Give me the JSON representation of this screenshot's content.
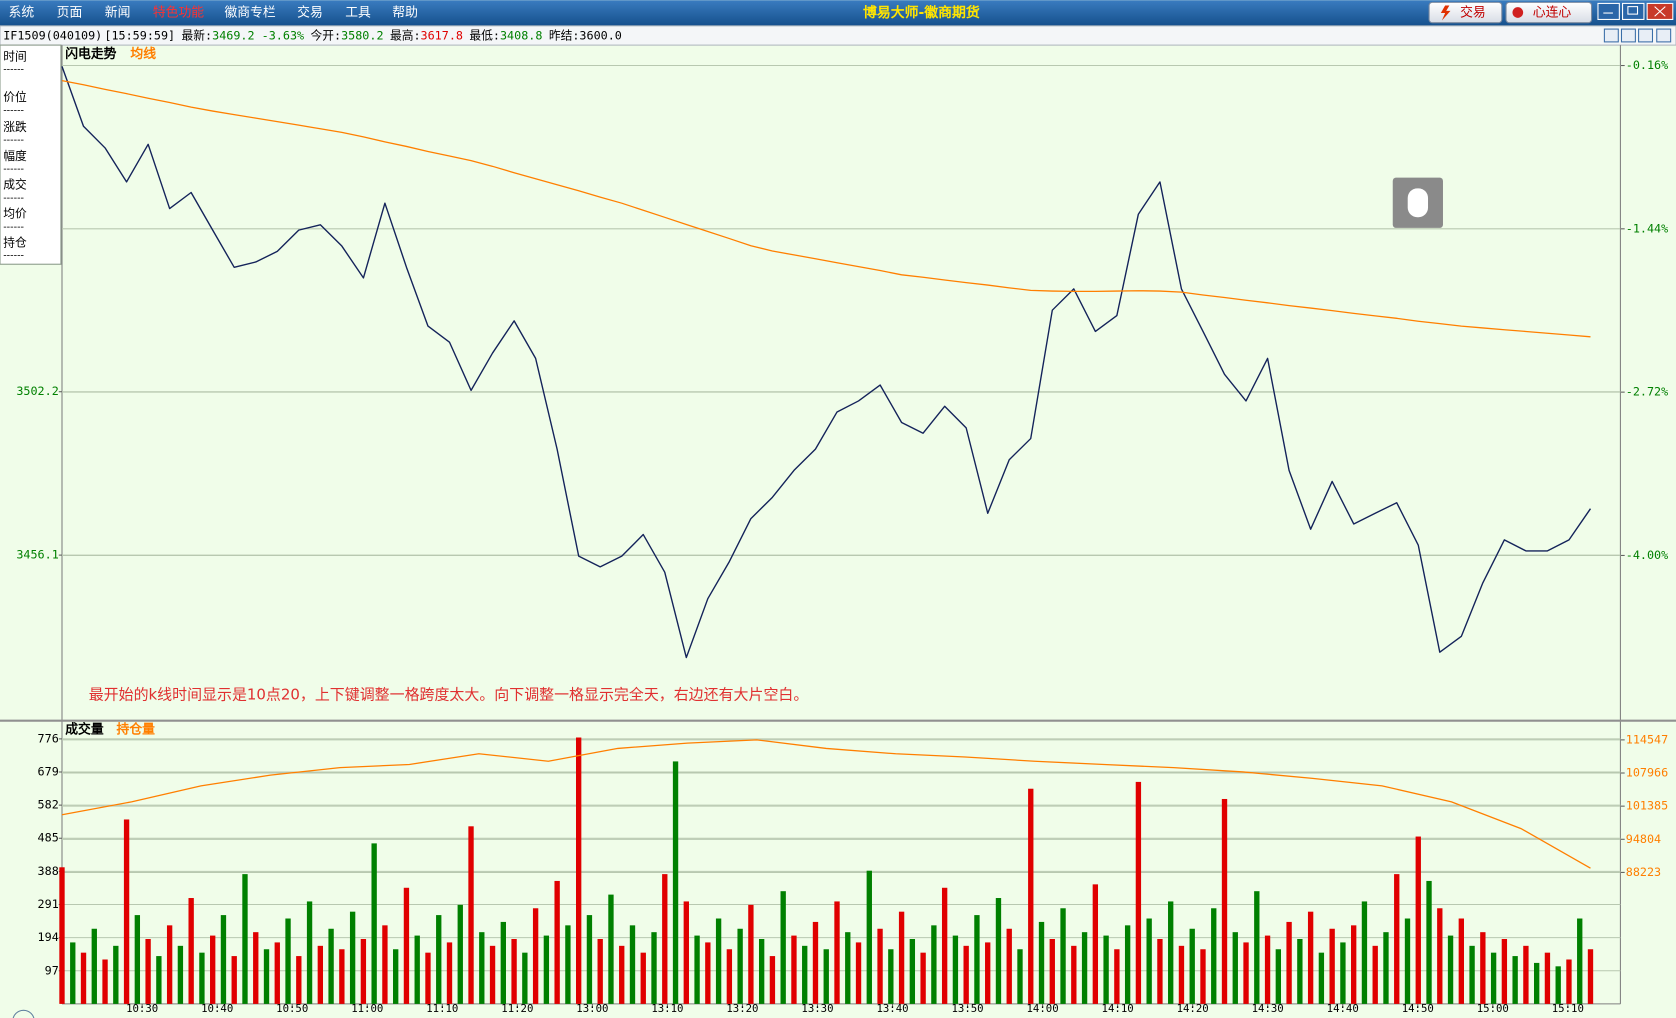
{
  "menu": [
    "系统",
    "页面",
    "新闻",
    "特色功能",
    "徽商专栏",
    "交易",
    "工具",
    "帮助"
  ],
  "window_title": "博易大师-徽商期货",
  "toolbar_buttons": [
    "交易",
    "心连心"
  ],
  "quote": {
    "symbol": "IF1509(040109)",
    "time": "[15:59:59]",
    "items": [
      {
        "label": "最新:",
        "value": "3469.2 -3.63%",
        "color": "#008000"
      },
      {
        "label": "今开:",
        "value": "3580.2",
        "color": "#008000"
      },
      {
        "label": "最高:",
        "value": "3617.8",
        "color": "#e00000"
      },
      {
        "label": "最低:",
        "value": "3408.8",
        "color": "#008000"
      },
      {
        "label": "昨结:",
        "value": "3600.0",
        "color": "#000000"
      }
    ]
  },
  "side_panel": {
    "labels": [
      "时间",
      "价位",
      "涨跌",
      "幅度",
      "成交",
      "均价",
      "持仓"
    ],
    "separator": "------"
  },
  "chart_data": [
    {
      "type": "line",
      "grid": true,
      "annotation": "最开始的k线时间显示是10点20，上下键调整一格跨度太大。向下调整一格显示完全天，右边还有大片空白。",
      "ylim": [
        3410,
        3600
      ],
      "yticks": [
        3502.2,
        3456.1
      ],
      "y2lim": [
        -5.278,
        0
      ],
      "y2ticks": [
        {
          "value": -0.16,
          "label": "-0.16%"
        },
        {
          "value": -1.44,
          "label": "-1.44%"
        },
        {
          "value": -2.72,
          "label": "-2.72%"
        },
        {
          "value": -4.0,
          "label": "-4.00%"
        }
      ],
      "series": [
        {
          "name": "闪电走势",
          "color": "#14235a",
          "values": [
            3594.0,
            3577.1,
            3571.0,
            3561.4,
            3572.0,
            3553.9,
            3558.4,
            3547.8,
            3537.3,
            3538.8,
            3541.8,
            3547.8,
            3549.3,
            3543.3,
            3534.3,
            3555.4,
            3537.3,
            3520.7,
            3516.2,
            3502.6,
            3513.1,
            3522.2,
            3511.6,
            3486.0,
            3455.8,
            3452.8,
            3455.8,
            3461.9,
            3451.3,
            3427.2,
            3443.8,
            3454.3,
            3466.4,
            3472.4,
            3480.0,
            3486.0,
            3496.5,
            3499.6,
            3504.1,
            3493.5,
            3490.5,
            3498.1,
            3492.0,
            3467.9,
            3483.0,
            3489.0,
            3525.2,
            3531.2,
            3519.2,
            3523.7,
            3552.3,
            3561.4,
            3531.2,
            3519.2,
            3507.1,
            3499.6,
            3511.6,
            3480.0,
            3463.4,
            3476.9,
            3464.9,
            3467.9,
            3470.9,
            3458.9,
            3428.7,
            3433.2,
            3448.3,
            3460.4,
            3457.3,
            3457.3,
            3460.4,
            3469.2
          ]
        },
        {
          "name": "均线",
          "color": "#ff7f00",
          "values": [
            3590.0,
            3588.8,
            3587.5,
            3586.3,
            3585.0,
            3583.8,
            3582.5,
            3581.4,
            3580.4,
            3579.4,
            3578.4,
            3577.4,
            3576.4,
            3575.4,
            3574.1,
            3572.7,
            3571.4,
            3570.0,
            3568.7,
            3567.4,
            3565.8,
            3564.0,
            3562.3,
            3560.6,
            3558.9,
            3557.1,
            3555.4,
            3553.4,
            3551.4,
            3549.4,
            3547.4,
            3545.4,
            3543.4,
            3541.9,
            3540.8,
            3539.7,
            3538.6,
            3537.5,
            3536.4,
            3535.2,
            3534.5,
            3533.7,
            3533.0,
            3532.3,
            3531.5,
            3530.8,
            3530.6,
            3530.5,
            3530.5,
            3530.6,
            3530.7,
            3530.6,
            3530.3,
            3529.5,
            3528.8,
            3528.0,
            3527.3,
            3526.5,
            3525.8,
            3525.1,
            3524.3,
            3523.6,
            3522.9,
            3522.1,
            3521.4,
            3520.7,
            3520.2,
            3519.7,
            3519.2,
            3518.7,
            3518.2,
            3517.7
          ]
        }
      ]
    },
    {
      "type": "bar_line",
      "grid": true,
      "x_axis_labels": [
        "10:30",
        "10:40",
        "10:50",
        "11:00",
        "11:10",
        "11:20",
        "13:00",
        "13:10",
        "13:20",
        "13:30",
        "13:40",
        "13:50",
        "14:00",
        "14:10",
        "14:20",
        "14:30",
        "14:40",
        "14:50",
        "15:00",
        "15:10"
      ],
      "ylim": [
        0,
        820
      ],
      "yticks": [
        97,
        194,
        291,
        388,
        485,
        582,
        679,
        776
      ],
      "y2lim": [
        62111,
        117731
      ],
      "y2ticks": [
        88223,
        94804,
        101385,
        107966,
        114547
      ],
      "series": [
        {
          "name": "成交量",
          "colors": [
            "#e00000",
            "#008000"
          ],
          "values": [
            400,
            180,
            150,
            220,
            130,
            170,
            540,
            260,
            190,
            140,
            230,
            170,
            310,
            150,
            200,
            260,
            140,
            380,
            210,
            160,
            180,
            250,
            140,
            300,
            170,
            220,
            160,
            270,
            190,
            470,
            230,
            160,
            340,
            200,
            150,
            260,
            180,
            290,
            520,
            210,
            170,
            240,
            190,
            150,
            280,
            200,
            360,
            230,
            780,
            260,
            190,
            320,
            170,
            230,
            150,
            210,
            380,
            710,
            300,
            200,
            180,
            250,
            160,
            220,
            290,
            190,
            140,
            330,
            200,
            170,
            240,
            160,
            300,
            210,
            180,
            390,
            220,
            160,
            270,
            190,
            150,
            230,
            340,
            200,
            170,
            260,
            180,
            310,
            220,
            160,
            630,
            240,
            190,
            280,
            170,
            210,
            350,
            200,
            160,
            230,
            650,
            250,
            190,
            300,
            170,
            220,
            160,
            280,
            600,
            210,
            180,
            330,
            200,
            160,
            240,
            190,
            270,
            150,
            220,
            180,
            230,
            300,
            170,
            210,
            380,
            250,
            490,
            360,
            280,
            200,
            250,
            170,
            210,
            150,
            190,
            140,
            170,
            120,
            150,
            110,
            130,
            250,
            160
          ]
        },
        {
          "name": "持仓量",
          "color": "#ff7f00",
          "axis": "y2",
          "values": [
            99688,
            102236,
            105420,
            107543,
            109029,
            109666,
            111789,
            110303,
            112851,
            113912,
            114549,
            112851,
            111789,
            111152,
            110303,
            109666,
            109029,
            108180,
            106906,
            105420,
            102236,
            96928,
            89073
          ]
        }
      ]
    }
  ]
}
